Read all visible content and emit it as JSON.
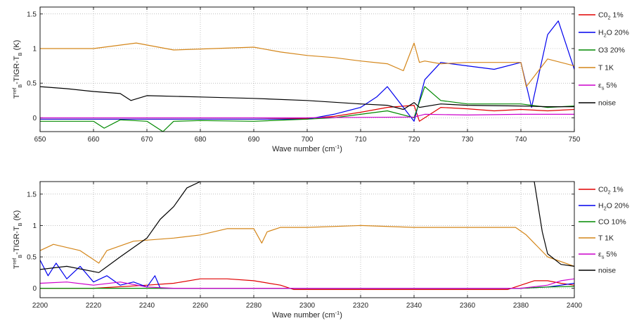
{
  "chart_data": [
    {
      "type": "line",
      "title": "",
      "xlabel": "Wave number (cm",
      "xlabel_sup": "-1",
      "xlabel_tail": ")",
      "ylabel": {
        "main": "T",
        "sup1": "ref",
        "sub1": "B",
        "mid": "-TIGR",
        "tail": "-T",
        "sub2": "B",
        "unit": " (K)"
      },
      "xlim": [
        650,
        750
      ],
      "ylim": [
        -0.2,
        1.6
      ],
      "xticks": [
        "650",
        "660",
        "670",
        "680",
        "690",
        "700",
        "710",
        "720",
        "730",
        "740",
        "750"
      ],
      "yticks": [
        "0",
        "0.5",
        "1",
        "1.5"
      ],
      "grid": true,
      "legend_position": "right",
      "legend": [
        {
          "text": "C0",
          "sub": "2",
          "tail": " 1%",
          "color": "#e00000"
        },
        {
          "text": "H",
          "sub": "2",
          "tail": "O 20%",
          "color": "#0000ee"
        },
        {
          "text": "O3 20%",
          "sub": "",
          "tail": "",
          "color": "#008800"
        },
        {
          "text": "T 1K",
          "sub": "",
          "tail": "",
          "color": "#d4861a"
        },
        {
          "text": "ε",
          "sub": "s",
          "tail": " 5%",
          "color": "#cc00cc"
        },
        {
          "text": "noise",
          "sub": "",
          "tail": "",
          "color": "#000000"
        }
      ],
      "series": [
        {
          "name": "C0 1%",
          "color": "#e00000",
          "x": [
            650,
            660,
            670,
            680,
            690,
            700,
            705,
            710,
            715,
            720,
            721,
            725,
            730,
            735,
            740,
            745,
            750
          ],
          "y": [
            -0.02,
            -0.02,
            -0.02,
            -0.02,
            -0.02,
            -0.01,
            0.02,
            0.08,
            0.15,
            0.18,
            -0.05,
            0.15,
            0.13,
            0.1,
            0.12,
            0.1,
            0.12
          ]
        },
        {
          "name": "H2O 20%",
          "color": "#0000ee",
          "x": [
            650,
            700,
            705,
            710,
            713,
            715,
            717,
            720,
            722,
            725,
            730,
            735,
            740,
            742,
            745,
            747,
            750
          ],
          "y": [
            -0.02,
            -0.02,
            0.05,
            0.15,
            0.3,
            0.45,
            0.25,
            -0.05,
            0.55,
            0.8,
            0.75,
            0.7,
            0.8,
            0.15,
            1.2,
            1.4,
            0.7
          ]
        },
        {
          "name": "O3 20%",
          "color": "#008800",
          "x": [
            650,
            660,
            662,
            665,
            670,
            673,
            675,
            680,
            690,
            700,
            705,
            710,
            715,
            720,
            722,
            725,
            730,
            740,
            745,
            750
          ],
          "y": [
            -0.05,
            -0.05,
            -0.15,
            -0.03,
            -0.05,
            -0.2,
            -0.05,
            -0.04,
            -0.05,
            -0.02,
            0.0,
            0.05,
            0.1,
            0.0,
            0.45,
            0.25,
            0.2,
            0.2,
            0.15,
            0.17
          ]
        },
        {
          "name": "T 1K",
          "color": "#d4861a",
          "x": [
            650,
            660,
            668,
            675,
            690,
            695,
            700,
            705,
            710,
            715,
            718,
            720,
            721,
            722,
            725,
            730,
            735,
            740,
            741,
            745,
            750
          ],
          "y": [
            1.0,
            1.0,
            1.08,
            0.98,
            1.02,
            0.95,
            0.9,
            0.87,
            0.82,
            0.78,
            0.68,
            1.08,
            0.8,
            0.82,
            0.78,
            0.8,
            0.8,
            0.8,
            0.45,
            0.85,
            0.75
          ]
        },
        {
          "name": "εs 5%",
          "color": "#cc00cc",
          "x": [
            650,
            700,
            720,
            722,
            730,
            740,
            750
          ],
          "y": [
            0.0,
            0.0,
            0.01,
            0.05,
            0.04,
            0.05,
            0.05
          ]
        },
        {
          "name": "noise",
          "color": "#000000",
          "x": [
            650,
            655,
            660,
            665,
            667,
            670,
            680,
            690,
            700,
            710,
            715,
            718,
            720,
            721,
            725,
            730,
            740,
            745,
            750
          ],
          "y": [
            0.45,
            0.42,
            0.38,
            0.35,
            0.25,
            0.32,
            0.3,
            0.28,
            0.25,
            0.2,
            0.18,
            0.12,
            0.22,
            0.15,
            0.2,
            0.18,
            0.17,
            0.16,
            0.16
          ]
        }
      ]
    },
    {
      "type": "line",
      "title": "",
      "xlabel": "Wave number (cm",
      "xlabel_sup": "-1",
      "xlabel_tail": ")",
      "ylabel": {
        "main": "T",
        "sup1": "ref",
        "sub1": "B",
        "mid": "-TIGR",
        "tail": "-T",
        "sub2": "B",
        "unit": " (K)"
      },
      "xlim": [
        2200,
        2400
      ],
      "ylim": [
        -0.15,
        1.7
      ],
      "xticks": [
        "2200",
        "2220",
        "2240",
        "2260",
        "2280",
        "2300",
        "2320",
        "2340",
        "2360",
        "2380",
        "2400"
      ],
      "yticks": [
        "0",
        "0.5",
        "1",
        "1.5"
      ],
      "grid": true,
      "legend_position": "right",
      "legend": [
        {
          "text": "C0",
          "sub": "2",
          "tail": " 1%",
          "color": "#e00000"
        },
        {
          "text": "H",
          "sub": "2",
          "tail": "O 20%",
          "color": "#0000ee"
        },
        {
          "text": "CO 10%",
          "sub": "",
          "tail": "",
          "color": "#008800"
        },
        {
          "text": "T 1K",
          "sub": "",
          "tail": "",
          "color": "#d4861a"
        },
        {
          "text": "ε",
          "sub": "s",
          "tail": " 5%",
          "color": "#cc00cc"
        },
        {
          "text": "noise",
          "sub": "",
          "tail": "",
          "color": "#000000"
        }
      ],
      "series": [
        {
          "name": "C0 1%",
          "color": "#e00000",
          "x": [
            2200,
            2220,
            2240,
            2250,
            2260,
            2270,
            2280,
            2290,
            2295,
            2300,
            2320,
            2340,
            2360,
            2375,
            2380,
            2385,
            2390,
            2395,
            2400
          ],
          "y": [
            0.0,
            0.0,
            0.05,
            0.08,
            0.15,
            0.15,
            0.12,
            0.05,
            -0.02,
            -0.02,
            -0.02,
            -0.02,
            -0.02,
            -0.02,
            0.05,
            0.12,
            0.12,
            0.08,
            0.05
          ]
        },
        {
          "name": "H2O 20%",
          "color": "#0000ee",
          "x": [
            2200,
            2203,
            2206,
            2210,
            2215,
            2220,
            2225,
            2230,
            2235,
            2240,
            2243,
            2245,
            2250,
            2300,
            2380,
            2390,
            2395,
            2400
          ],
          "y": [
            0.45,
            0.2,
            0.4,
            0.15,
            0.35,
            0.1,
            0.2,
            0.05,
            0.1,
            0.02,
            0.2,
            0.0,
            0.0,
            0.0,
            0.0,
            0.02,
            0.05,
            0.08
          ]
        },
        {
          "name": "CO 10%",
          "color": "#008800",
          "x": [
            2200,
            2300,
            2380,
            2390,
            2400
          ],
          "y": [
            0.0,
            0.0,
            0.0,
            0.02,
            0.03
          ]
        },
        {
          "name": "T 1K",
          "color": "#d4861a",
          "x": [
            2200,
            2205,
            2215,
            2222,
            2225,
            2235,
            2250,
            2260,
            2270,
            2280,
            2283,
            2285,
            2290,
            2300,
            2320,
            2340,
            2360,
            2378,
            2382,
            2390,
            2400
          ],
          "y": [
            0.6,
            0.7,
            0.6,
            0.4,
            0.6,
            0.75,
            0.8,
            0.85,
            0.95,
            0.95,
            0.72,
            0.9,
            0.97,
            0.97,
            1.0,
            0.97,
            0.97,
            0.97,
            0.85,
            0.5,
            0.35
          ]
        },
        {
          "name": "εs 5%",
          "color": "#cc00cc",
          "x": [
            2200,
            2210,
            2220,
            2230,
            2240,
            2250,
            2300,
            2380,
            2390,
            2395,
            2400
          ],
          "y": [
            0.08,
            0.1,
            0.05,
            0.1,
            0.02,
            0.0,
            0.0,
            0.0,
            0.05,
            0.12,
            0.15
          ]
        },
        {
          "name": "noise",
          "color": "#000000",
          "x": [
            2200,
            2210,
            2222,
            2230,
            2240,
            2245,
            2250,
            2255,
            2260,
            2265,
            2380,
            2385,
            2388,
            2390,
            2395,
            2400
          ],
          "y": [
            0.3,
            0.35,
            0.25,
            0.5,
            0.8,
            1.1,
            1.3,
            1.6,
            1.7,
            1.7,
            1.7,
            1.7,
            0.9,
            0.55,
            0.38,
            0.35
          ]
        }
      ]
    }
  ]
}
